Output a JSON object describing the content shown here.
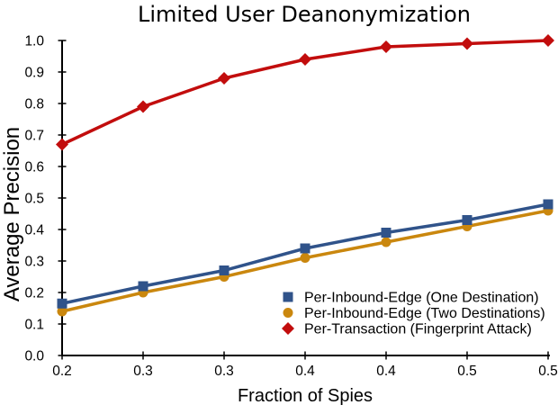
{
  "chart_data": {
    "type": "line",
    "title": "Limited User Deanonymization",
    "xlabel": "Fraction of Spies",
    "ylabel": "Average Precision",
    "x": [
      0.2,
      0.25,
      0.3,
      0.35,
      0.4,
      0.45,
      0.5
    ],
    "xtick_labels": [
      "0.2",
      "0.3",
      "0.3",
      "0.4",
      "0.4",
      "0.5",
      "0.5"
    ],
    "ytick_labels": [
      "0.0",
      "0.1",
      "0.2",
      "0.3",
      "0.4",
      "0.5",
      "0.6",
      "0.7",
      "0.8",
      "0.9",
      "1.0"
    ],
    "yticks": [
      0.0,
      0.1,
      0.2,
      0.3,
      0.4,
      0.5,
      0.6,
      0.7,
      0.8,
      0.9,
      1.0
    ],
    "xlim": [
      0.2,
      0.5
    ],
    "ylim": [
      0.0,
      1.0
    ],
    "grid": false,
    "legend_position": "inside lower right",
    "background_color": "#FFFFFF",
    "text_color": "#000000",
    "series": [
      {
        "name": "Per-Inbound-Edge (One Destination)",
        "marker": "square",
        "color": "#30538A",
        "values": [
          0.165,
          0.22,
          0.27,
          0.34,
          0.39,
          0.43,
          0.48
        ]
      },
      {
        "name": "Per-Inbound-Edge (Two Destinations)",
        "marker": "circle",
        "color": "#CA870E",
        "values": [
          0.14,
          0.2,
          0.25,
          0.31,
          0.36,
          0.41,
          0.46
        ]
      },
      {
        "name": "Per-Transaction (Fingerprint Attack)",
        "marker": "diamond",
        "color": "#C20D0D",
        "values": [
          0.67,
          0.79,
          0.88,
          0.94,
          0.98,
          0.99,
          1.0
        ]
      }
    ]
  }
}
